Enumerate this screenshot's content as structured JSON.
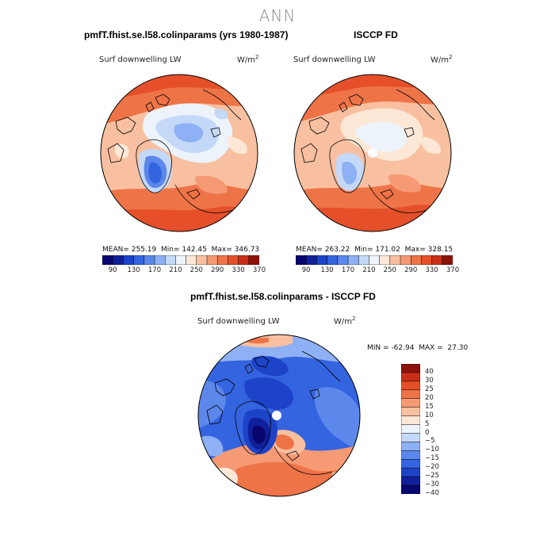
{
  "figure": {
    "title": "ANN"
  },
  "panel_model": {
    "title": "pmfT.fhist.se.l58.colinparams (yrs 1980-1987)",
    "variable": "Surf downwelling LW",
    "units_base": "W/m",
    "units_exp": "2",
    "stats": {
      "mean_label": "MEAN=",
      "mean": "255.19",
      "min_label": "Min=",
      "min": "142.45",
      "max_label": "Max=",
      "max": "346.73"
    }
  },
  "panel_obs": {
    "title": "ISCCP FD",
    "variable": "Surf downwelling LW",
    "units_base": "W/m",
    "units_exp": "2",
    "stats": {
      "mean_label": "MEAN=",
      "mean": "263.22",
      "min_label": "Min=",
      "min": "171.02",
      "max_label": "Max=",
      "max": "328.15"
    }
  },
  "panel_diff": {
    "title": "pmfT.fhist.se.l58.colinparams - ISCCP FD",
    "variable": "Surf downwelling LW",
    "units_base": "W/m",
    "units_exp": "2",
    "stats": {
      "min_label": "MIN =",
      "min": "-62.94",
      "max_label": "MAX =",
      "max": "27.30"
    }
  },
  "colorbar_abs": {
    "tick_labels": [
      "90",
      "130",
      "170",
      "210",
      "250",
      "290",
      "330",
      "370"
    ],
    "colors": [
      "#08066e",
      "#10209a",
      "#1d43c8",
      "#3564e0",
      "#5c88ec",
      "#8eb0f4",
      "#c4d8f8",
      "#ecf3fb",
      "#fde7d6",
      "#f8c0a0",
      "#f59a74",
      "#ee7448",
      "#e5502a",
      "#c92f18",
      "#8c1109"
    ]
  },
  "colorbar_diff": {
    "tick_labels": [
      "40",
      "30",
      "25",
      "20",
      "15",
      "10",
      "5",
      "0",
      "−5",
      "−10",
      "−15",
      "−20",
      "−25",
      "−30",
      "−40"
    ],
    "colors": [
      "#8c1109",
      "#c92f18",
      "#e5502a",
      "#ee7448",
      "#f59a74",
      "#f8c0a0",
      "#fde7d6",
      "#ecf3fb",
      "#c4d8f8",
      "#8eb0f4",
      "#5c88ec",
      "#3564e0",
      "#1d43c8",
      "#10209a",
      "#08066e"
    ]
  }
}
